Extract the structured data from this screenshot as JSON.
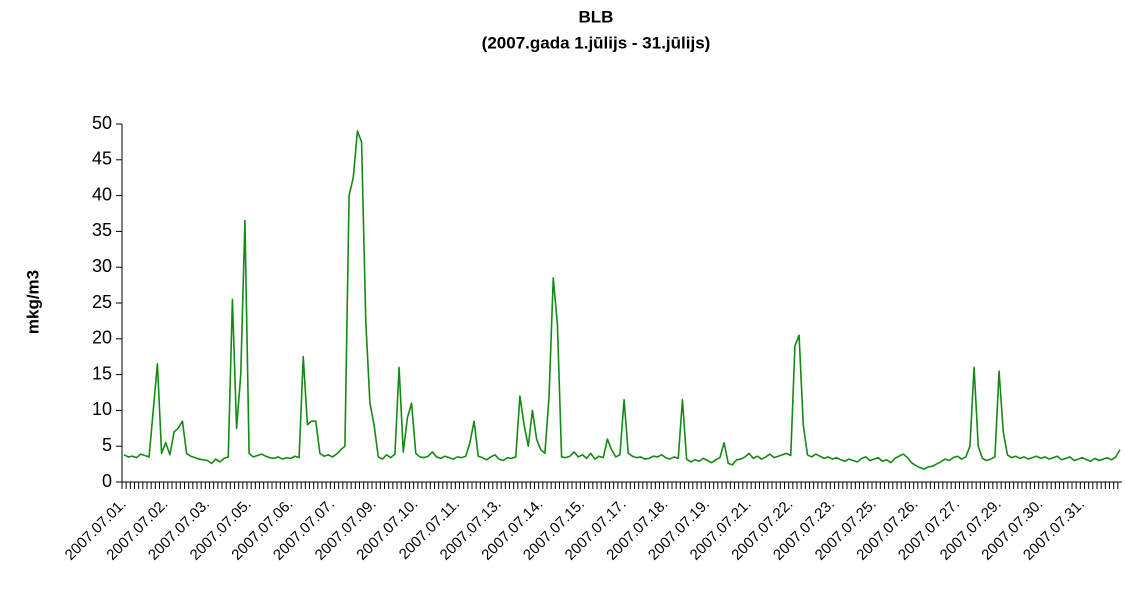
{
  "chart_data": {
    "type": "line",
    "title": "BLB",
    "subtitle": "(2007.gada 1.jūlijs - 31.jūlijs)",
    "y_label": "mkg/m3",
    "color": "#138a13",
    "ylim": [
      0,
      50
    ],
    "yticks": [
      0,
      5,
      10,
      15,
      20,
      25,
      30,
      35,
      40,
      45,
      50
    ],
    "categories": [
      "2007.07.01.",
      null,
      null,
      null,
      null,
      null,
      null,
      null,
      null,
      null,
      "2007.07.02.",
      null,
      null,
      null,
      null,
      null,
      null,
      null,
      null,
      null,
      "2007.07.03.",
      null,
      null,
      null,
      null,
      null,
      null,
      null,
      null,
      null,
      "2007.07.05.",
      null,
      null,
      null,
      null,
      null,
      null,
      null,
      null,
      null,
      "2007.07.06.",
      null,
      null,
      null,
      null,
      null,
      null,
      null,
      null,
      null,
      "2007.07.07.",
      null,
      null,
      null,
      null,
      null,
      null,
      null,
      null,
      null,
      "2007.07.09.",
      null,
      null,
      null,
      null,
      null,
      null,
      null,
      null,
      null,
      "2007.07.10.",
      null,
      null,
      null,
      null,
      null,
      null,
      null,
      null,
      null,
      "2007.07.11.",
      null,
      null,
      null,
      null,
      null,
      null,
      null,
      null,
      null,
      "2007.07.13.",
      null,
      null,
      null,
      null,
      null,
      null,
      null,
      null,
      null,
      "2007.07.14.",
      null,
      null,
      null,
      null,
      null,
      null,
      null,
      null,
      null,
      "2007.07.15.",
      null,
      null,
      null,
      null,
      null,
      null,
      null,
      null,
      null,
      "2007.07.17.",
      null,
      null,
      null,
      null,
      null,
      null,
      null,
      null,
      null,
      "2007.07.18.",
      null,
      null,
      null,
      null,
      null,
      null,
      null,
      null,
      null,
      "2007.07.19.",
      null,
      null,
      null,
      null,
      null,
      null,
      null,
      null,
      null,
      "2007.07.21.",
      null,
      null,
      null,
      null,
      null,
      null,
      null,
      null,
      null,
      "2007.07.22.",
      null,
      null,
      null,
      null,
      null,
      null,
      null,
      null,
      null,
      "2007.07.23.",
      null,
      null,
      null,
      null,
      null,
      null,
      null,
      null,
      null,
      "2007.07.25.",
      null,
      null,
      null,
      null,
      null,
      null,
      null,
      null,
      null,
      "2007.07.26.",
      null,
      null,
      null,
      null,
      null,
      null,
      null,
      null,
      null,
      "2007.07.27.",
      null,
      null,
      null,
      null,
      null,
      null,
      null,
      null,
      null,
      "2007.07.29.",
      null,
      null,
      null,
      null,
      null,
      null,
      null,
      null,
      null,
      "2007.07.30.",
      null,
      null,
      null,
      null,
      null,
      null,
      null,
      null,
      null,
      "2007.07.31.",
      null,
      null,
      null,
      null,
      null,
      null,
      null,
      null,
      null
    ],
    "values": [
      3.8,
      3.5,
      3.6,
      3.4,
      3.9,
      3.7,
      3.5,
      10,
      16.5,
      4,
      5.5,
      3.8,
      7,
      7.5,
      8.5,
      4,
      3.6,
      3.4,
      3.2,
      3.1,
      3.0,
      2.6,
      3.2,
      2.8,
      3.3,
      3.5,
      25.5,
      7.5,
      15,
      36.5,
      4,
      3.5,
      3.7,
      3.9,
      3.6,
      3.4,
      3.3,
      3.5,
      3.2,
      3.4,
      3.3,
      3.6,
      3.4,
      17.5,
      8,
      8.5,
      8.5,
      4,
      3.6,
      3.8,
      3.5,
      3.9,
      4.5,
      5,
      40,
      42.5,
      49,
      47.5,
      22.5,
      11,
      8,
      3.5,
      3.2,
      3.8,
      3.4,
      3.9,
      16,
      4.2,
      9,
      11,
      4,
      3.5,
      3.4,
      3.6,
      4.2,
      3.5,
      3.3,
      3.6,
      3.4,
      3.2,
      3.5,
      3.4,
      3.6,
      5.5,
      8.5,
      3.6,
      3.4,
      3.1,
      3.5,
      3.8,
      3.2,
      3.0,
      3.4,
      3.3,
      3.5,
      12,
      8,
      5,
      10,
      6,
      4.5,
      4,
      12,
      28.5,
      22,
      3.5,
      3.4,
      3.6,
      4.2,
      3.5,
      3.8,
      3.3,
      4,
      3.2,
      3.6,
      3.4,
      6,
      4.5,
      3.5,
      3.8,
      11.5,
      4,
      3.6,
      3.4,
      3.5,
      3.2,
      3.3,
      3.6,
      3.5,
      3.8,
      3.4,
      3.2,
      3.5,
      3.3,
      11.5,
      3.2,
      2.8,
      3.1,
      2.9,
      3.3,
      3.0,
      2.7,
      3.1,
      3.4,
      5.5,
      2.6,
      2.4,
      3.1,
      3.2,
      3.5,
      4,
      3.3,
      3.6,
      3.2,
      3.5,
      3.9,
      3.4,
      3.6,
      3.8,
      4,
      3.7,
      19,
      20.5,
      8,
      3.8,
      3.5,
      3.9,
      3.6,
      3.3,
      3.5,
      3.2,
      3.4,
      3.1,
      2.9,
      3.2,
      3.0,
      2.8,
      3.3,
      3.5,
      3.0,
      3.2,
      3.4,
      2.9,
      3.1,
      2.7,
      3.3,
      3.6,
      3.9,
      3.4,
      2.7,
      2.3,
      2.0,
      1.8,
      2.1,
      2.2,
      2.5,
      2.8,
      3.2,
      3.0,
      3.4,
      3.6,
      3.2,
      3.5,
      5,
      16,
      5,
      3.3,
      3.0,
      3.2,
      3.5,
      15.5,
      7,
      3.8,
      3.4,
      3.6,
      3.3,
      3.5,
      3.2,
      3.4,
      3.6,
      3.3,
      3.5,
      3.2,
      3.4,
      3.6,
      3.1,
      3.3,
      3.5,
      3.0,
      3.2,
      3.4,
      3.1,
      2.9,
      3.3,
      3.0,
      3.2,
      3.4,
      3.1,
      3.5,
      4.5
    ]
  }
}
